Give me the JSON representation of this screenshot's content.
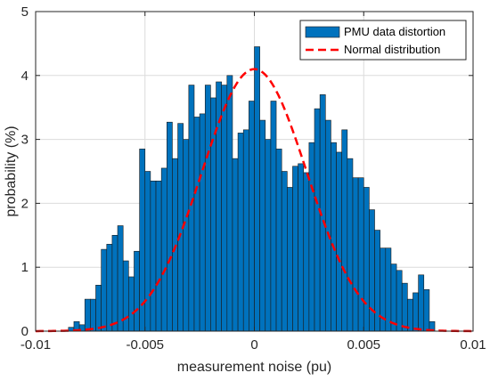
{
  "chart_data": {
    "type": "bar",
    "xlabel": "measurement noise (pu)",
    "ylabel": "probability (%)",
    "xlim": [
      -0.01,
      0.01
    ],
    "ylim": [
      0,
      5
    ],
    "xticks": [
      -0.01,
      -0.005,
      0,
      0.005,
      0.01
    ],
    "xtick_labels": [
      "-0.01",
      "-0.005",
      "0",
      "0.005",
      "0.01"
    ],
    "yticks": [
      0,
      1,
      2,
      3,
      4,
      5
    ],
    "ytick_labels": [
      "0",
      "1",
      "2",
      "3",
      "4",
      "5"
    ],
    "grid": true,
    "legend_position": "top-right",
    "bar_color": "#0072BD",
    "curve_color": "#FF0000",
    "series": [
      {
        "name": "PMU data distortion",
        "type": "histogram",
        "bin_width": 0.00025,
        "bin_start": -0.0085,
        "values": [
          0.06,
          0.15,
          0.1,
          0.5,
          0.5,
          0.72,
          1.28,
          1.36,
          1.5,
          1.65,
          1.1,
          0.85,
          1.25,
          2.85,
          2.5,
          2.35,
          2.35,
          2.55,
          3.27,
          2.7,
          3.25,
          3.0,
          3.85,
          3.35,
          3.4,
          3.85,
          3.65,
          3.9,
          3.85,
          4.0,
          2.7,
          3.1,
          3.15,
          3.6,
          4.45,
          3.3,
          3.0,
          3.6,
          2.85,
          2.5,
          2.25,
          2.58,
          2.62,
          2.48,
          2.95,
          3.48,
          3.7,
          3.3,
          2.95,
          2.8,
          3.15,
          2.7,
          2.4,
          2.4,
          2.25,
          1.9,
          1.58,
          1.3,
          1.3,
          1.05,
          0.95,
          0.75,
          0.5,
          0.6,
          0.88,
          0.65,
          0.15
        ],
        "note_values_unit": "percent"
      },
      {
        "name": "Normal distribution",
        "type": "line",
        "style": "dashed",
        "mean": 0,
        "std": 0.0024,
        "peak": 4.1
      }
    ]
  }
}
